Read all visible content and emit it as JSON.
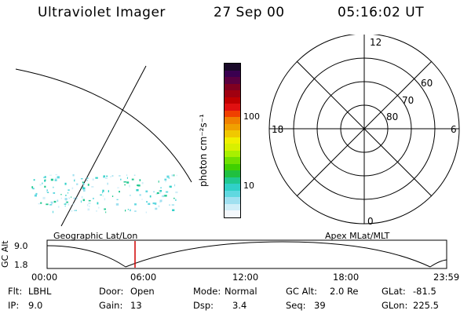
{
  "header": {
    "instrument": "Ultraviolet Imager",
    "date": "27 Sep 00",
    "time": "05:16:02 UT"
  },
  "colorbar": {
    "unit_label": "photon cm⁻²s⁻¹",
    "ticks": [
      "100",
      "10"
    ],
    "colors": [
      "#1a0a2a",
      "#3a0050",
      "#5a0040",
      "#800020",
      "#a00010",
      "#c00000",
      "#e01010",
      "#f04000",
      "#f08000",
      "#f0a000",
      "#f0c800",
      "#f0f000",
      "#d8f000",
      "#a8f000",
      "#70e000",
      "#40d000",
      "#20c040",
      "#20c890",
      "#30d0c8",
      "#60d8e0",
      "#a0e0f0",
      "#d0eef8",
      "#f4f8fc"
    ]
  },
  "left_map": {
    "label": "Geographic Lat/Lon"
  },
  "right_map": {
    "label": "Apex MLat/MLT",
    "mlt_labels": {
      "top": "12",
      "bottom": "0",
      "left": "18",
      "right": "6"
    },
    "lat_labels": [
      "60",
      "70",
      "80"
    ]
  },
  "altitude_plot": {
    "ylabel": "GC Alt",
    "yticks": [
      "9.0",
      "1.8"
    ],
    "xticks": [
      "00:00",
      "06:00",
      "12:00",
      "18:00",
      "23:59"
    ],
    "current_time_marker_color": "#d00000"
  },
  "status": {
    "flt_label": "Flt:",
    "flt_value": "LBHL",
    "ip_label": "IP:",
    "ip_value": "9.0",
    "door_label": "Door:",
    "door_value": "Open",
    "gain_label": "Gain:",
    "gain_value": "13",
    "mode_label": "Mode:",
    "mode_value": "Normal",
    "dsp_label": "Dsp:",
    "dsp_value": "3.4",
    "gcalt_label": "GC Alt:",
    "gcalt_value": "2.0 Re",
    "seq_label": "Seq:",
    "seq_value": "39",
    "glat_label": "GLat:",
    "glat_value": "-81.5",
    "glon_label": "GLon:",
    "glon_value": "225.5"
  }
}
